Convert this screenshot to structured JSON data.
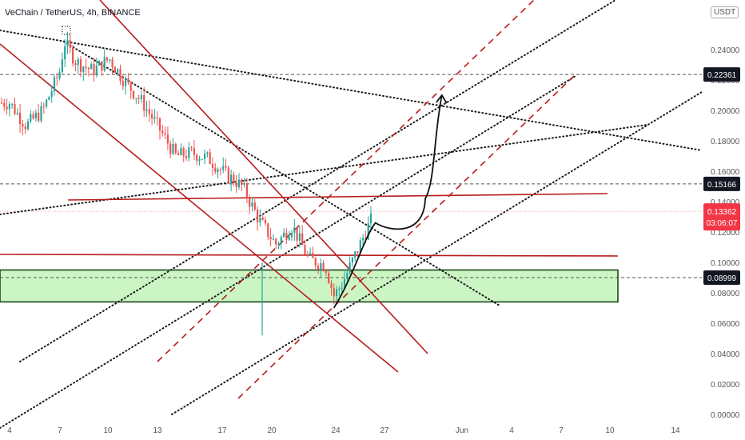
{
  "header": {
    "title": "VeChain / TetherUS, 4h, BINANCE",
    "currency_button": "USDT"
  },
  "colors": {
    "trend_red": "#b71c1c",
    "dotted": "#1b1b1b",
    "zone_fill": "#ccf5c4",
    "zone_border": "#0b3d0b",
    "candle_up": "#26a69a",
    "candle_down": "#ef5350",
    "label_dark": "#131722",
    "last_price": "#f23645"
  },
  "price_tags": [
    {
      "value": "0.22361",
      "kind": "dark"
    },
    {
      "value": "0.15166",
      "kind": "dark"
    },
    {
      "value": "0.13362",
      "kind": "last",
      "sub": "03:06:07"
    },
    {
      "value": "0.08999",
      "kind": "dark"
    }
  ],
  "chart_data": {
    "type": "candlestick",
    "title": "VeChain / TetherUS, 4h, BINANCE",
    "x_ticks": [
      "4",
      "7",
      "10",
      "13",
      "17",
      "20",
      "24",
      "27",
      "Jun",
      "4",
      "7",
      "10",
      "14"
    ],
    "y_ticks": [
      "0.24000",
      "0.22000",
      "0.20000",
      "0.18000",
      "0.16000",
      "0.14000",
      "0.12000",
      "0.10000",
      "0.08000",
      "0.06000",
      "0.04000",
      "0.02000",
      "0.00000"
    ],
    "ylim": [
      0,
      0.26
    ],
    "horizontal_levels": [
      0.22361,
      0.15166,
      0.13362,
      0.08999
    ],
    "demand_zone": [
      0.074,
      0.095
    ],
    "price_path": [
      {
        "day": 4,
        "close": 0.205
      },
      {
        "day": 5,
        "close": 0.19
      },
      {
        "day": 6,
        "close": 0.2
      },
      {
        "day": 7,
        "close": 0.225
      },
      {
        "day": 7.3,
        "close": 0.245
      },
      {
        "day": 8,
        "close": 0.232
      },
      {
        "day": 9,
        "close": 0.226
      },
      {
        "day": 10,
        "close": 0.234
      },
      {
        "day": 11,
        "close": 0.218
      },
      {
        "day": 12,
        "close": 0.205
      },
      {
        "day": 13,
        "close": 0.188
      },
      {
        "day": 14,
        "close": 0.17
      },
      {
        "day": 15,
        "close": 0.172
      },
      {
        "day": 16,
        "close": 0.168
      },
      {
        "day": 17,
        "close": 0.158
      },
      {
        "day": 18,
        "close": 0.15
      },
      {
        "day": 19,
        "close": 0.128
      },
      {
        "day": 20,
        "close": 0.112
      },
      {
        "day": 21,
        "close": 0.124
      },
      {
        "day": 22,
        "close": 0.102
      },
      {
        "day": 23,
        "close": 0.098
      },
      {
        "day": 23.5,
        "close": 0.078
      },
      {
        "day": 24,
        "close": 0.086
      },
      {
        "day": 25,
        "close": 0.11
      },
      {
        "day": 26,
        "close": 0.134
      }
    ],
    "projection_path": [
      {
        "day": 23.5,
        "value": 0.07
      },
      {
        "day": 26,
        "value": 0.126
      },
      {
        "day": 27.5,
        "value": 0.122
      },
      {
        "day": 29,
        "value": 0.142
      },
      {
        "day": 30,
        "value": 0.21
      }
    ]
  }
}
